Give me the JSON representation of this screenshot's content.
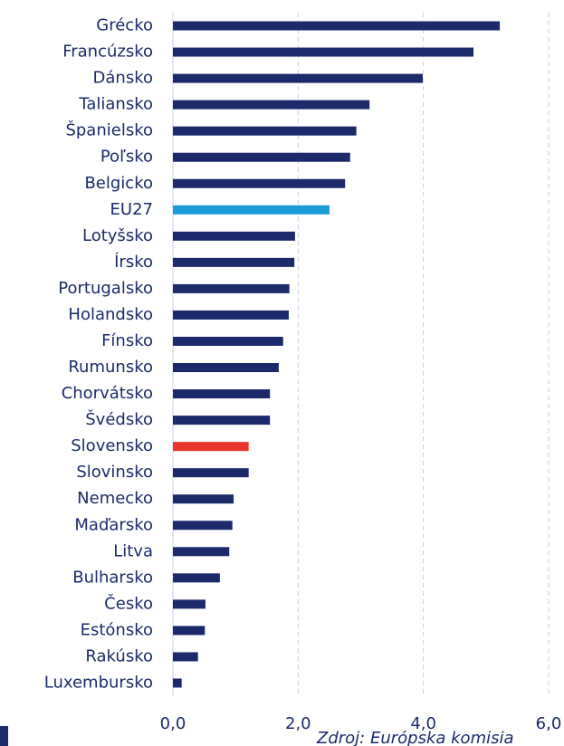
{
  "chart_data": {
    "type": "bar",
    "orientation": "horizontal",
    "categories": [
      "Grécko",
      "Francúzsko",
      "Dánsko",
      "Taliansko",
      "Španielsko",
      "Poľsko",
      "Belgicko",
      "EU27",
      "Lotyšsko",
      "Írsko",
      "Portugalsko",
      "Holandsko",
      "Fínsko",
      "Rumunsko",
      "Chorvátsko",
      "Švédsko",
      "Slovensko",
      "Slovinsko",
      "Nemecko",
      "Maďarsko",
      "Litva",
      "Bulharsko",
      "Česko",
      "Estónsko",
      "Rakúsko",
      "Luxembursko"
    ],
    "values": [
      5.22,
      4.8,
      3.99,
      3.14,
      2.93,
      2.83,
      2.75,
      2.5,
      1.95,
      1.94,
      1.86,
      1.85,
      1.76,
      1.69,
      1.55,
      1.55,
      1.21,
      1.21,
      0.97,
      0.95,
      0.9,
      0.75,
      0.52,
      0.51,
      0.4,
      0.14
    ],
    "colors": [
      "#1c2a6b",
      "#1c2a6b",
      "#1c2a6b",
      "#1c2a6b",
      "#1c2a6b",
      "#1c2a6b",
      "#1c2a6b",
      "#1a9bd7",
      "#1c2a6b",
      "#1c2a6b",
      "#1c2a6b",
      "#1c2a6b",
      "#1c2a6b",
      "#1c2a6b",
      "#1c2a6b",
      "#1c2a6b",
      "#e8382d",
      "#1c2a6b",
      "#1c2a6b",
      "#1c2a6b",
      "#1c2a6b",
      "#1c2a6b",
      "#1c2a6b",
      "#1c2a6b",
      "#1c2a6b",
      "#1c2a6b"
    ],
    "xlim": [
      0,
      6
    ],
    "xticks": [
      {
        "value": 0,
        "label": "0,0"
      },
      {
        "value": 2,
        "label": "2,0"
      },
      {
        "value": 4,
        "label": "4,0"
      },
      {
        "value": 6,
        "label": "6,0"
      }
    ],
    "grid": true,
    "source": "Zdroj: Európska komisia"
  }
}
